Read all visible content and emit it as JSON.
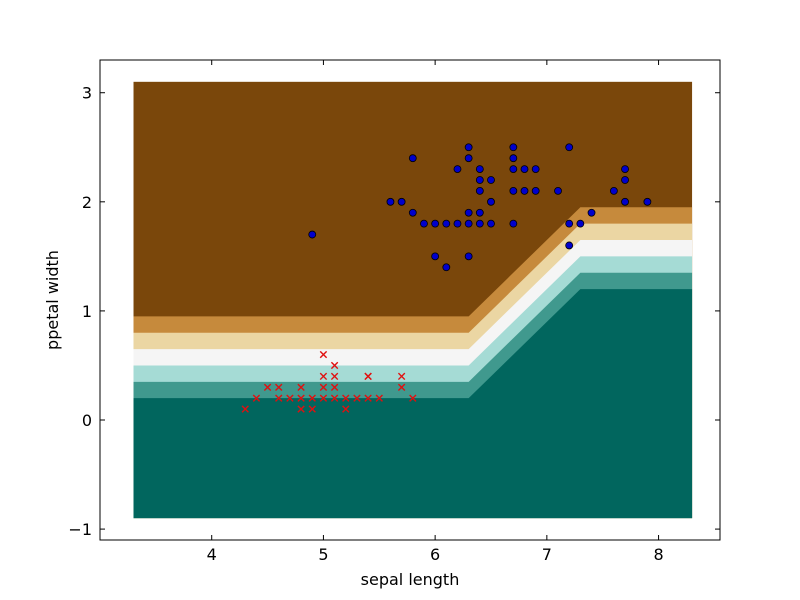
{
  "chart_data": {
    "type": "scatter",
    "title": "",
    "xlabel": "sepal length",
    "ylabel": "ppetal width",
    "xlim": [
      3.0,
      8.55
    ],
    "ylim": [
      -1.1,
      3.3
    ],
    "xticks": [
      4,
      5,
      6,
      7,
      8
    ],
    "yticks": [
      -1,
      0,
      1,
      2,
      3
    ],
    "xtick_labels": [
      "4",
      "5",
      "6",
      "7",
      "8"
    ],
    "ytick_labels": [
      "−1",
      "0",
      "1",
      "2",
      "3"
    ],
    "grid": false,
    "legend": null,
    "decision_regions": {
      "x_range": [
        3.3,
        8.3
      ],
      "y_range": [
        -0.9,
        3.1
      ],
      "level_colors": [
        "#01665e",
        "#35978f",
        "#80cdc1",
        "#c7eae5",
        "#f5f5f5",
        "#f6e8c3",
        "#dfc27d",
        "#bf812d",
        "#8c510a"
      ],
      "bands": [
        {
          "color": "#01665e",
          "left": 0.2,
          "right": 1.2
        },
        {
          "color": "#40998e",
          "left": 0.35,
          "right": 1.35
        },
        {
          "color": "#a5dbd5",
          "left": 0.5,
          "right": 1.5
        },
        {
          "color": "#f5f5f5",
          "left": 0.65,
          "right": 1.65
        },
        {
          "color": "#ebd6a3",
          "left": 0.8,
          "right": 1.8
        },
        {
          "color": "#c68a3c",
          "left": 0.95,
          "right": 1.95
        },
        {
          "color": "#7a470b",
          "left": 3.1,
          "right": 3.1
        }
      ],
      "boundary_break_x": [
        6.3,
        7.3
      ]
    },
    "series": [
      {
        "marker": "x",
        "color": "#e01010",
        "points": [
          [
            5.0,
            0.6
          ],
          [
            5.1,
            0.5
          ],
          [
            5.0,
            0.4
          ],
          [
            5.1,
            0.4
          ],
          [
            5.4,
            0.4
          ],
          [
            5.4,
            0.4
          ],
          [
            5.7,
            0.4
          ],
          [
            4.5,
            0.3
          ],
          [
            4.6,
            0.3
          ],
          [
            4.8,
            0.3
          ],
          [
            5.0,
            0.3
          ],
          [
            5.1,
            0.3
          ],
          [
            5.7,
            0.3
          ],
          [
            4.4,
            0.2
          ],
          [
            4.6,
            0.2
          ],
          [
            4.7,
            0.2
          ],
          [
            4.8,
            0.2
          ],
          [
            4.9,
            0.2
          ],
          [
            5.0,
            0.2
          ],
          [
            5.1,
            0.2
          ],
          [
            5.2,
            0.2
          ],
          [
            5.3,
            0.2
          ],
          [
            5.4,
            0.2
          ],
          [
            5.5,
            0.2
          ],
          [
            5.8,
            0.2
          ],
          [
            4.3,
            0.1
          ],
          [
            4.8,
            0.1
          ],
          [
            4.9,
            0.1
          ],
          [
            5.2,
            0.1
          ]
        ]
      },
      {
        "marker": "o",
        "color": "#0000cc",
        "points": [
          [
            6.3,
            2.5
          ],
          [
            6.7,
            2.5
          ],
          [
            7.2,
            2.5
          ],
          [
            5.8,
            2.4
          ],
          [
            6.3,
            2.4
          ],
          [
            6.7,
            2.4
          ],
          [
            6.2,
            2.3
          ],
          [
            6.4,
            2.3
          ],
          [
            6.7,
            2.3
          ],
          [
            6.8,
            2.3
          ],
          [
            6.9,
            2.3
          ],
          [
            7.7,
            2.3
          ],
          [
            6.4,
            2.2
          ],
          [
            6.5,
            2.2
          ],
          [
            7.7,
            2.2
          ],
          [
            6.4,
            2.1
          ],
          [
            6.7,
            2.1
          ],
          [
            6.8,
            2.1
          ],
          [
            6.9,
            2.1
          ],
          [
            7.1,
            2.1
          ],
          [
            7.6,
            2.1
          ],
          [
            5.6,
            2.0
          ],
          [
            5.7,
            2.0
          ],
          [
            6.5,
            2.0
          ],
          [
            7.7,
            2.0
          ],
          [
            7.9,
            2.0
          ],
          [
            5.8,
            1.9
          ],
          [
            6.3,
            1.9
          ],
          [
            6.4,
            1.9
          ],
          [
            7.4,
            1.9
          ],
          [
            5.9,
            1.8
          ],
          [
            6.0,
            1.8
          ],
          [
            6.1,
            1.8
          ],
          [
            6.2,
            1.8
          ],
          [
            6.3,
            1.8
          ],
          [
            6.4,
            1.8
          ],
          [
            6.5,
            1.8
          ],
          [
            6.7,
            1.8
          ],
          [
            7.2,
            1.8
          ],
          [
            7.3,
            1.8
          ],
          [
            4.9,
            1.7
          ],
          [
            7.2,
            1.6
          ],
          [
            6.0,
            1.5
          ],
          [
            6.3,
            1.5
          ],
          [
            6.1,
            1.4
          ]
        ]
      }
    ]
  }
}
